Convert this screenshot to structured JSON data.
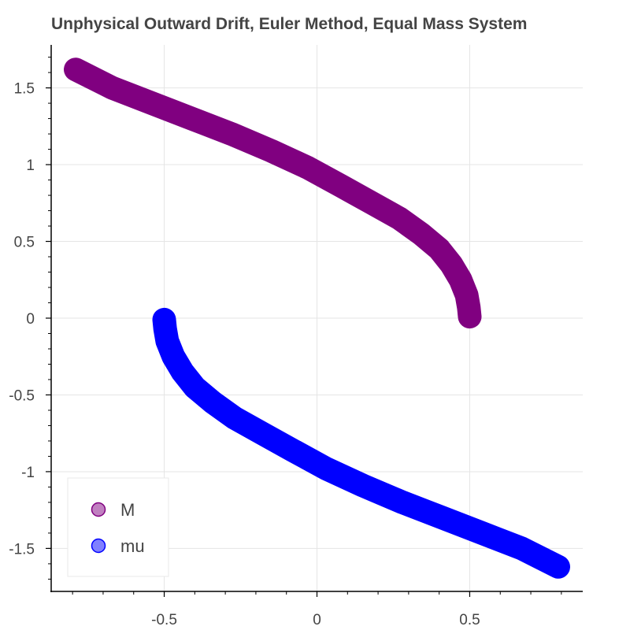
{
  "chart_data": {
    "type": "scatter",
    "title": "Unphysical Outward Drift, Euler Method, Equal Mass System",
    "xlabel": "",
    "ylabel": "",
    "xlim": [
      -0.87,
      0.87
    ],
    "ylim": [
      -1.78,
      1.78
    ],
    "x_ticks": [
      -0.5,
      0,
      0.5
    ],
    "x_tick_labels": [
      "-0.5",
      "0",
      "0.5"
    ],
    "y_ticks": [
      -1.5,
      -1,
      -0.5,
      0,
      0.5,
      1,
      1.5
    ],
    "y_tick_labels": [
      "-1.5",
      "-1",
      "-0.5",
      "0",
      "0.5",
      "1",
      "1.5"
    ],
    "grid": true,
    "legend_position": "bottom-left",
    "series": [
      {
        "name": "M",
        "color": "#800080",
        "legend_fill": "#c080c0",
        "x": [
          0.5,
          0.497,
          0.49,
          0.47,
          0.44,
          0.4,
          0.34,
          0.27,
          0.18,
          0.08,
          -0.03,
          -0.15,
          -0.28,
          -0.41,
          -0.54,
          -0.67,
          -0.79
        ],
        "y": [
          0.01,
          0.07,
          0.15,
          0.25,
          0.35,
          0.45,
          0.55,
          0.65,
          0.75,
          0.86,
          0.98,
          1.09,
          1.2,
          1.3,
          1.4,
          1.5,
          1.62
        ]
      },
      {
        "name": "mu",
        "color": "#0000ff",
        "legend_fill": "#8080ff",
        "x": [
          -0.5,
          -0.497,
          -0.49,
          -0.47,
          -0.44,
          -0.4,
          -0.34,
          -0.27,
          -0.18,
          -0.08,
          0.03,
          0.15,
          0.28,
          0.41,
          0.54,
          0.67,
          0.79
        ],
        "y": [
          -0.01,
          -0.07,
          -0.15,
          -0.25,
          -0.35,
          -0.45,
          -0.55,
          -0.65,
          -0.75,
          -0.86,
          -0.98,
          -1.09,
          -1.2,
          -1.3,
          -1.4,
          -1.5,
          -1.62
        ]
      }
    ]
  }
}
